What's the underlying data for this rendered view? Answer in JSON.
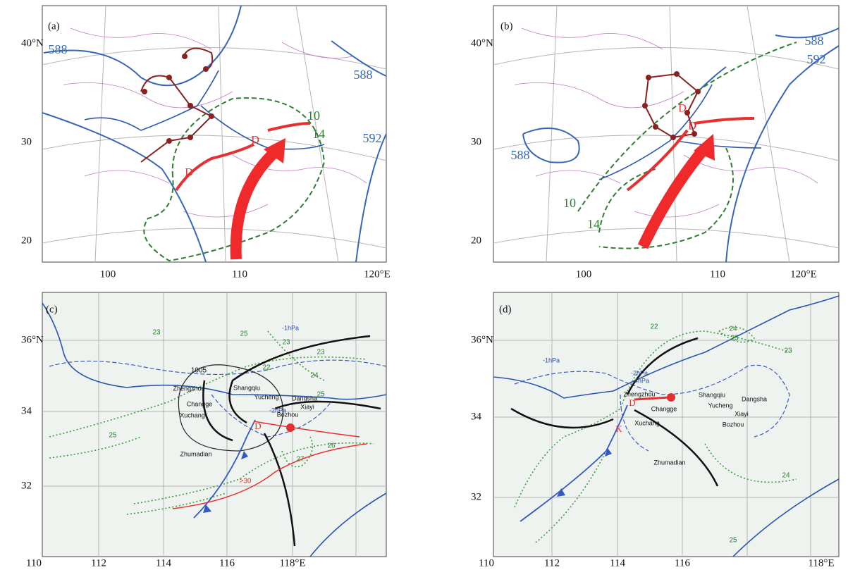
{
  "panels": [
    {
      "label": "(a)",
      "lat_ticks": [
        "40°N",
        "30",
        "20"
      ],
      "lon_ticks": [
        "100",
        "110",
        "120°E"
      ],
      "labels": [
        "588",
        "588",
        "592",
        "10",
        "14",
        "D",
        "D"
      ]
    },
    {
      "label": "(b)",
      "lat_ticks": [
        "40°N",
        "30",
        "20"
      ],
      "lon_ticks": [
        "100",
        "110",
        "120°E"
      ],
      "labels": [
        "588",
        "592",
        "588",
        "10",
        "14",
        "D",
        "D"
      ]
    },
    {
      "label": "(c)",
      "lat_ticks": [
        "36°N",
        "34",
        "32"
      ],
      "lon_ticks": [
        "110",
        "112",
        "114",
        "116",
        "118°E"
      ],
      "labels": [
        "23",
        "25",
        "-1hPa",
        "23",
        "23",
        "1005",
        "22",
        "24",
        "25",
        "Zhengzhou",
        "Shangqiu",
        "Changge",
        "Yucheng",
        "Dangsha",
        "Xuchang",
        "Xiayi",
        "-2hPa",
        "Bozhou",
        "D",
        "25",
        "26",
        "27",
        "Zhumadian",
        ">30"
      ]
    },
    {
      "label": "(d)",
      "lat_ticks": [
        "36°N",
        "34",
        "32"
      ],
      "lon_ticks": [
        "110",
        "112",
        "114",
        "116",
        "118°E"
      ],
      "labels": [
        "22",
        "24",
        "25",
        "23",
        "-1hPa",
        "-2hPa",
        "-4hPa",
        "Zhengzhou",
        "Shangqiu",
        "Changge",
        "Yucheng",
        "Dangsha",
        "Xiayi",
        "D",
        "Xuchang",
        "Bozhou",
        "K",
        "Zhumadian",
        "24",
        "25"
      ]
    }
  ]
}
